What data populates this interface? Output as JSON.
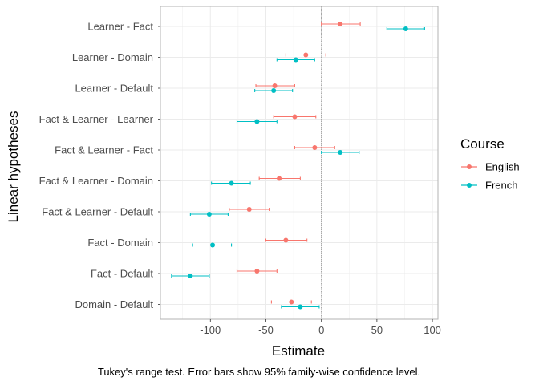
{
  "chart_data": {
    "type": "scatter",
    "subtype": "dot-whisker",
    "xlabel": "Estimate",
    "ylabel": "Linear hypotheses",
    "caption": "Tukey's range test. Error bars show 95% family-wise confidence level.",
    "xlim": [
      -145,
      105
    ],
    "xticks": [
      -100,
      -50,
      0,
      50,
      100
    ],
    "xtick_labels": [
      "-100",
      "-50",
      "0",
      "50",
      "100"
    ],
    "grid": true,
    "reference_line_x": 0,
    "categories": [
      "Learner - Fact",
      "Learner - Domain",
      "Learner - Default",
      "Fact & Learner - Learner",
      "Fact & Learner - Fact",
      "Fact & Learner - Domain",
      "Fact & Learner - Default",
      "Fact - Domain",
      "Fact - Default",
      "Domain - Default"
    ],
    "legend": {
      "title": "Course",
      "position": "right"
    },
    "series": [
      {
        "name": "English",
        "color": "#F8766D",
        "estimates": [
          17,
          -14,
          -42,
          -24,
          -6,
          -38,
          -65,
          -32,
          -58,
          -27
        ],
        "lower": [
          0,
          -32,
          -59,
          -43,
          -24,
          -56,
          -83,
          -50,
          -76,
          -45
        ],
        "upper": [
          35,
          4,
          -24,
          -5,
          12,
          -19,
          -47,
          -13,
          -40,
          -9
        ]
      },
      {
        "name": "French",
        "color": "#00BFC4",
        "estimates": [
          76,
          -23,
          -43,
          -58,
          17,
          -81,
          -101,
          -98,
          -118,
          -19
        ],
        "lower": [
          59,
          -40,
          -60,
          -76,
          0,
          -99,
          -118,
          -116,
          -135,
          -36
        ],
        "upper": [
          93,
          -6,
          -26,
          -40,
          34,
          -64,
          -84,
          -81,
          -101,
          -2
        ]
      }
    ]
  }
}
